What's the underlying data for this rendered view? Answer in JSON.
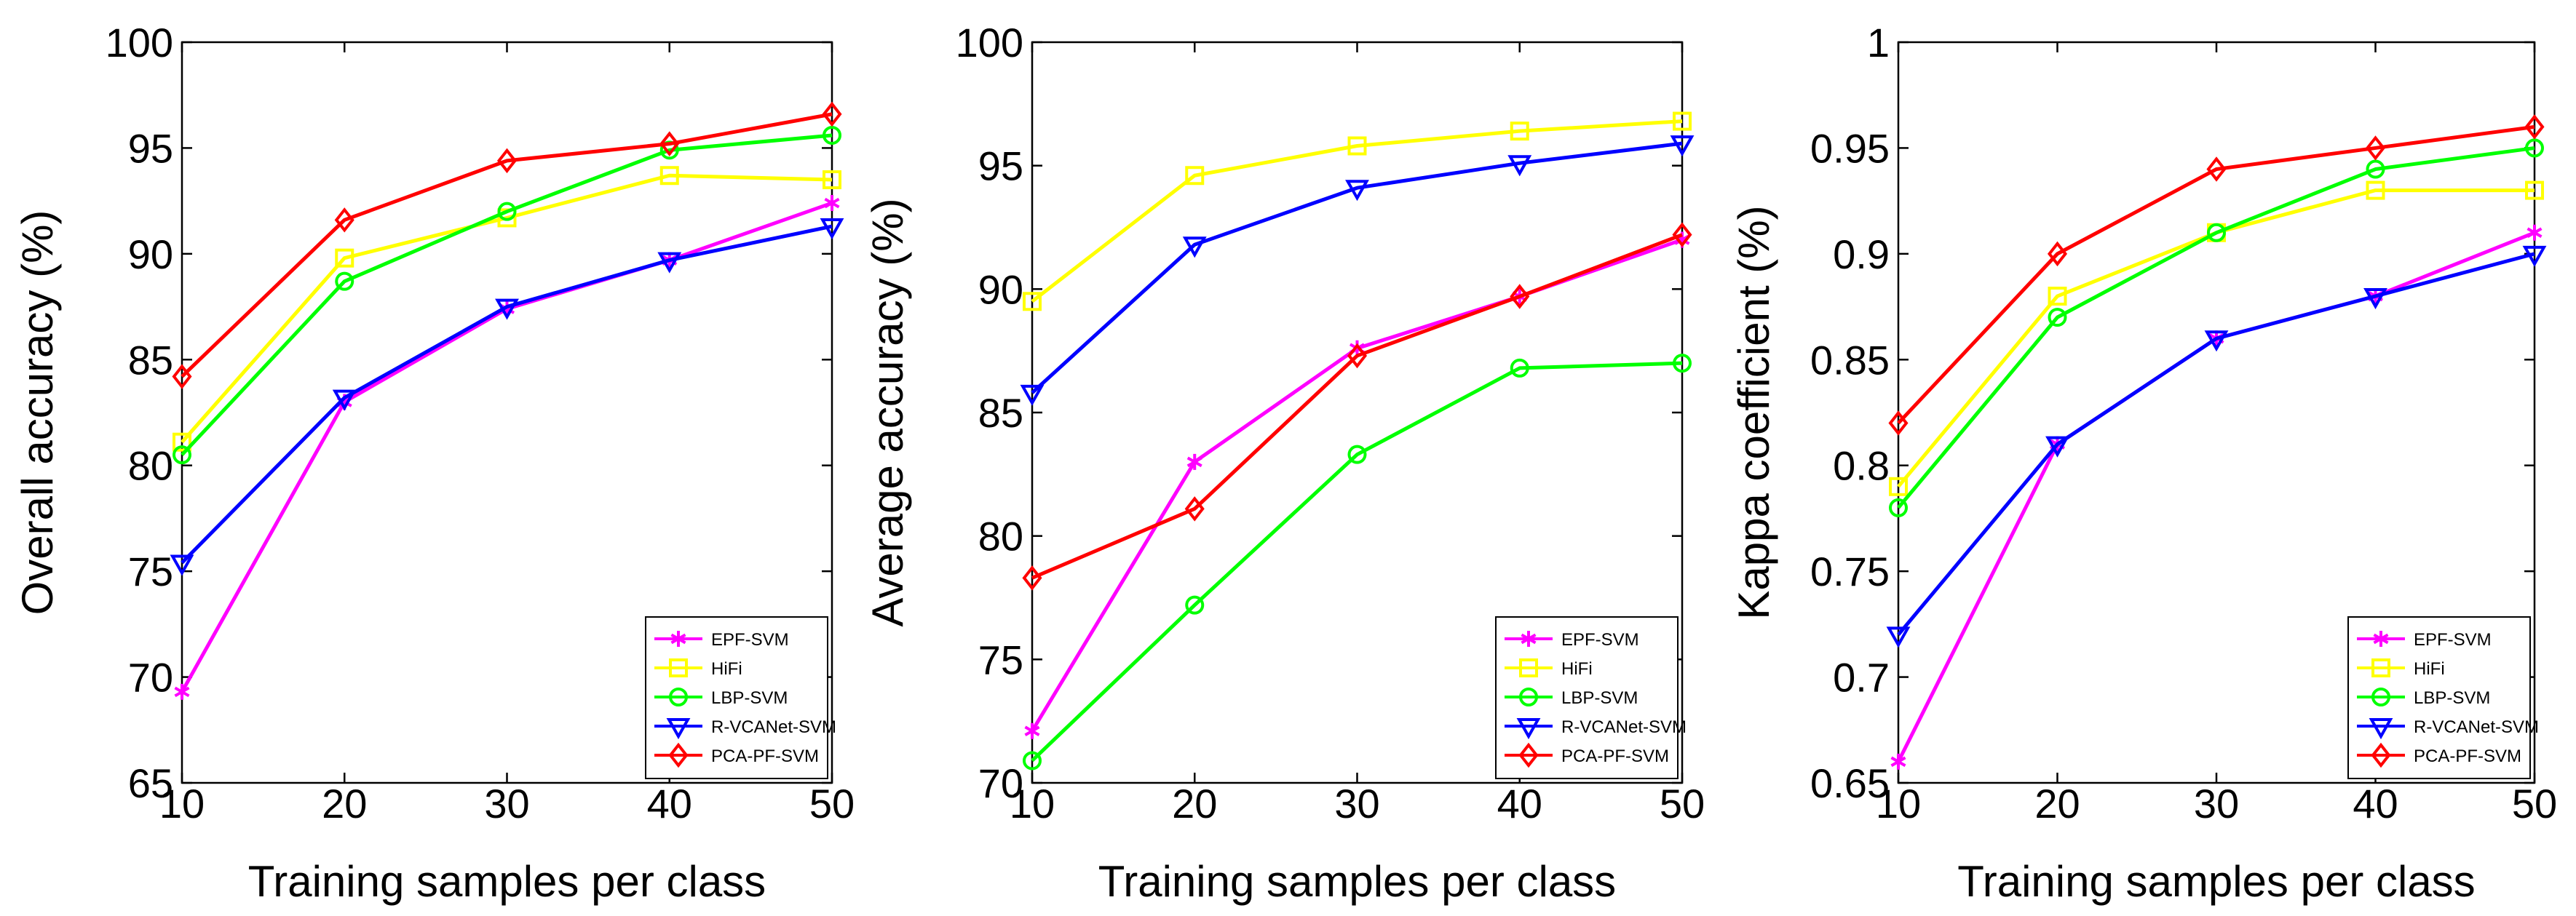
{
  "chart_data": [
    {
      "type": "line",
      "xlabel": "Training samples per class",
      "ylabel": "Overall accuracy (%)",
      "x": [
        10,
        20,
        30,
        40,
        50
      ],
      "xlim": [
        10,
        50
      ],
      "ylim": [
        65,
        100
      ],
      "xticks": [
        "10",
        "20",
        "30",
        "40",
        "50"
      ],
      "yticks": [
        "65",
        "70",
        "75",
        "80",
        "85",
        "90",
        "95",
        "100"
      ],
      "grid": false,
      "legend_position": "bottom-right",
      "series": [
        {
          "name": "EPF-SVM",
          "values": [
            69.3,
            83.0,
            87.4,
            89.7,
            92.4
          ],
          "color": "#ff00ff",
          "marker": "star"
        },
        {
          "name": "HiFi",
          "values": [
            81.1,
            89.8,
            91.7,
            93.7,
            93.5
          ],
          "color": "#ffff00",
          "marker": "square"
        },
        {
          "name": "LBP-SVM",
          "values": [
            80.5,
            88.7,
            92.0,
            94.9,
            95.6
          ],
          "color": "#00ff00",
          "marker": "circle"
        },
        {
          "name": "R-VCANet-SVM",
          "values": [
            75.4,
            83.2,
            87.5,
            89.7,
            91.3
          ],
          "color": "#0000ff",
          "marker": "triangle-down"
        },
        {
          "name": "PCA-PF-SVM",
          "values": [
            84.2,
            91.6,
            94.4,
            95.2,
            96.6
          ],
          "color": "#ff0000",
          "marker": "diamond"
        }
      ]
    },
    {
      "type": "line",
      "xlabel": "Training samples per class",
      "ylabel": "Average accuracy (%)",
      "x": [
        10,
        20,
        30,
        40,
        50
      ],
      "xlim": [
        10,
        50
      ],
      "ylim": [
        70,
        100
      ],
      "xticks": [
        "10",
        "20",
        "30",
        "40",
        "50"
      ],
      "yticks": [
        "70",
        "75",
        "80",
        "85",
        "90",
        "95",
        "100"
      ],
      "grid": false,
      "legend_position": "bottom-right",
      "series": [
        {
          "name": "EPF-SVM",
          "values": [
            72.1,
            83.0,
            87.6,
            89.7,
            92.0
          ],
          "color": "#ff00ff",
          "marker": "star"
        },
        {
          "name": "HiFi",
          "values": [
            89.5,
            94.6,
            95.8,
            96.4,
            96.8
          ],
          "color": "#ffff00",
          "marker": "square"
        },
        {
          "name": "LBP-SVM",
          "values": [
            70.9,
            77.2,
            83.3,
            86.8,
            87.0
          ],
          "color": "#00ff00",
          "marker": "circle"
        },
        {
          "name": "R-VCANet-SVM",
          "values": [
            85.8,
            91.8,
            94.1,
            95.1,
            95.9
          ],
          "color": "#0000ff",
          "marker": "triangle-down"
        },
        {
          "name": "PCA-PF-SVM",
          "values": [
            78.3,
            81.1,
            87.3,
            89.7,
            92.2
          ],
          "color": "#ff0000",
          "marker": "diamond"
        }
      ]
    },
    {
      "type": "line",
      "xlabel": "Training samples per class",
      "ylabel": "Kappa coefficient (%)",
      "x": [
        10,
        20,
        30,
        40,
        50
      ],
      "xlim": [
        10,
        50
      ],
      "ylim": [
        0.65,
        1
      ],
      "xticks": [
        "10",
        "20",
        "30",
        "40",
        "50"
      ],
      "yticks": [
        "0.65",
        "0.7",
        "0.75",
        "0.8",
        "0.85",
        "0.9",
        "0.95",
        "1"
      ],
      "grid": false,
      "legend_position": "bottom-right",
      "series": [
        {
          "name": "EPF-SVM",
          "values": [
            0.66,
            0.81,
            0.86,
            0.88,
            0.91
          ],
          "color": "#ff00ff",
          "marker": "star"
        },
        {
          "name": "HiFi",
          "values": [
            0.79,
            0.88,
            0.91,
            0.93,
            0.93
          ],
          "color": "#ffff00",
          "marker": "square"
        },
        {
          "name": "LBP-SVM",
          "values": [
            0.78,
            0.87,
            0.91,
            0.94,
            0.95
          ],
          "color": "#00ff00",
          "marker": "circle"
        },
        {
          "name": "R-VCANet-SVM",
          "values": [
            0.72,
            0.81,
            0.86,
            0.88,
            0.9
          ],
          "color": "#0000ff",
          "marker": "triangle-down"
        },
        {
          "name": "PCA-PF-SVM",
          "values": [
            0.82,
            0.9,
            0.94,
            0.95,
            0.96
          ],
          "color": "#ff0000",
          "marker": "diamond"
        }
      ]
    }
  ]
}
